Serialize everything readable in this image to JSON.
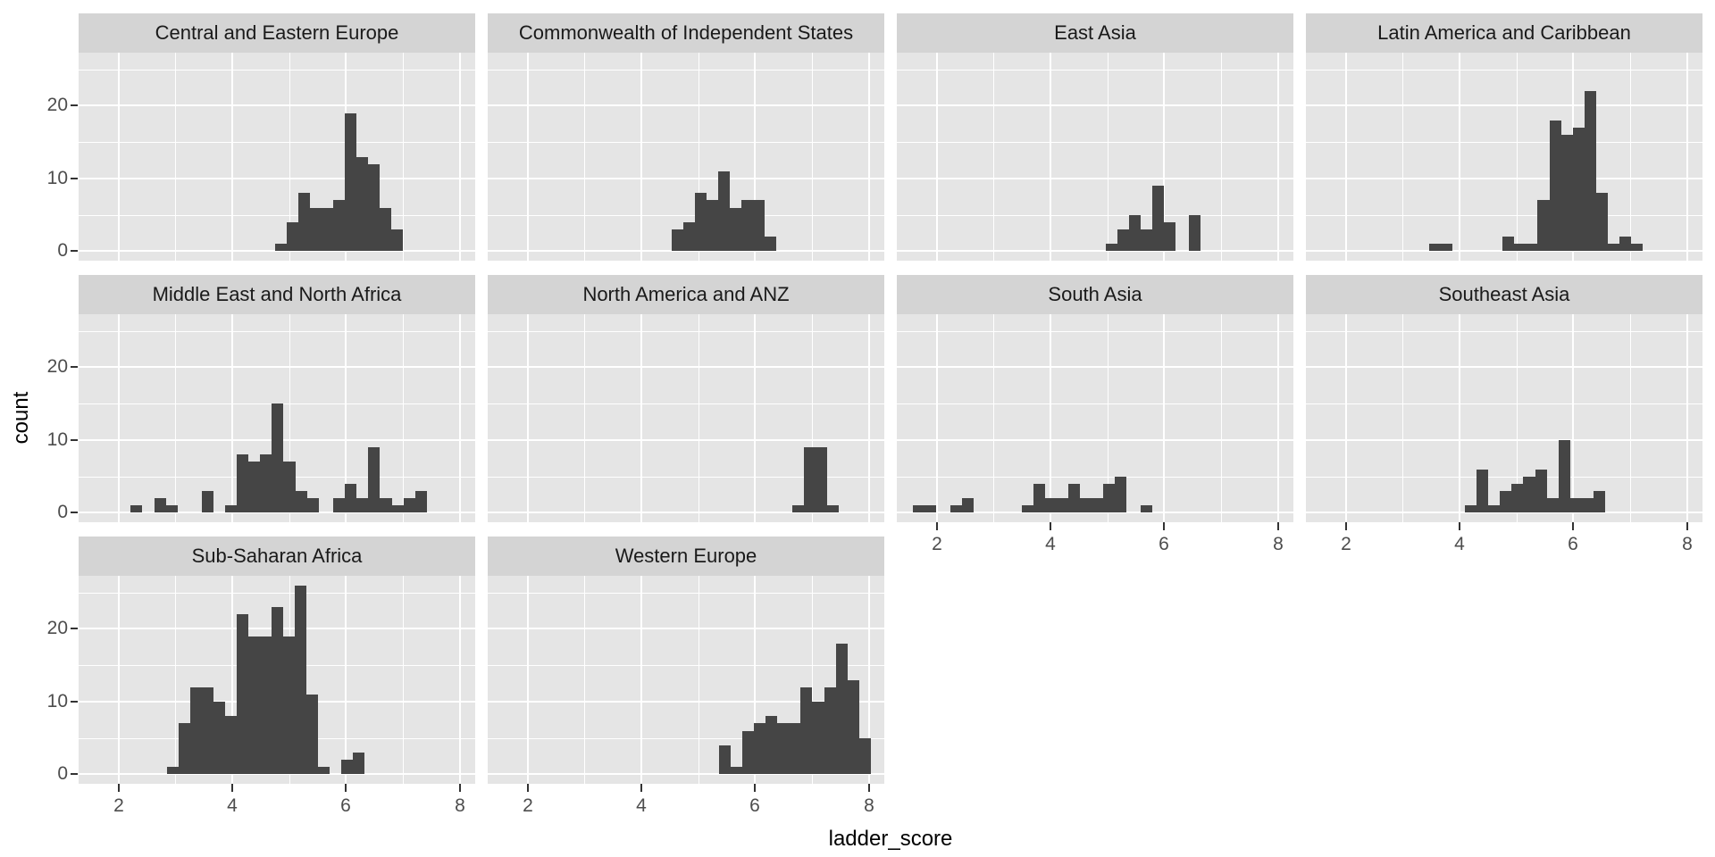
{
  "chart_data": {
    "type": "histogram",
    "xlabel": "ladder_score",
    "ylabel": "count",
    "x_ticks": [
      2,
      4,
      6,
      8
    ],
    "x_minor_gridlines": [
      3,
      5,
      7
    ],
    "y_ticks": [
      0,
      10,
      20
    ],
    "y_minor_gridlines": [
      5,
      15,
      25
    ],
    "x_domain": [
      1.3,
      8.27
    ],
    "y_domain": [
      -1.3,
      27.3
    ],
    "binwidth": 0.2045,
    "legend": "none",
    "grid": "white major and minor gridlines on grey panel",
    "facet_layout": {
      "rows": 3,
      "cols": 4
    },
    "facets": [
      {
        "name": "Central and Eastern Europe",
        "row": 0,
        "col": 0,
        "segments": [
          {
            "x0": 4.75,
            "counts": [
              1,
              4,
              8,
              6,
              6,
              7,
              19,
              13,
              12,
              6,
              3
            ]
          }
        ]
      },
      {
        "name": "Commonwealth of Independent States",
        "row": 0,
        "col": 1,
        "segments": [
          {
            "x0": 4.53,
            "counts": [
              3,
              4,
              8,
              7,
              11,
              6,
              7,
              7,
              2
            ]
          }
        ]
      },
      {
        "name": "East Asia",
        "row": 0,
        "col": 2,
        "segments": [
          {
            "x0": 4.97,
            "counts": [
              1,
              3,
              5,
              3,
              9,
              4
            ]
          },
          {
            "x0": 6.43,
            "counts": [
              5
            ]
          }
        ]
      },
      {
        "name": "Latin America and Caribbean",
        "row": 0,
        "col": 3,
        "segments": [
          {
            "x0": 3.47,
            "counts": [
              1,
              1
            ]
          },
          {
            "x0": 4.76,
            "counts": [
              2,
              1,
              1,
              7,
              18,
              16,
              17,
              22,
              8,
              1,
              2,
              1
            ]
          }
        ]
      },
      {
        "name": "Middle East and North Africa",
        "row": 1,
        "col": 0,
        "segments": [
          {
            "x0": 2.21,
            "counts": [
              1
            ]
          },
          {
            "x0": 2.63,
            "counts": [
              2,
              1
            ]
          },
          {
            "x0": 3.46,
            "counts": [
              3
            ]
          },
          {
            "x0": 3.88,
            "counts": [
              1,
              8,
              7,
              8,
              15,
              7,
              3,
              2
            ]
          },
          {
            "x0": 5.78,
            "counts": [
              2,
              4,
              2,
              9,
              2,
              1,
              2,
              3
            ]
          }
        ]
      },
      {
        "name": "North America and ANZ",
        "row": 1,
        "col": 1,
        "segments": [
          {
            "x0": 6.65,
            "counts": [
              1,
              9,
              9,
              1
            ]
          }
        ]
      },
      {
        "name": "South Asia",
        "row": 1,
        "col": 2,
        "segments": [
          {
            "x0": 1.58,
            "counts": [
              1,
              1
            ]
          },
          {
            "x0": 2.24,
            "counts": [
              1,
              2
            ]
          },
          {
            "x0": 3.49,
            "counts": [
              1,
              4,
              2,
              2,
              4,
              2,
              2,
              4,
              5
            ]
          },
          {
            "x0": 5.59,
            "counts": [
              1
            ]
          }
        ]
      },
      {
        "name": "Southeast Asia",
        "row": 1,
        "col": 3,
        "segments": [
          {
            "x0": 4.1,
            "counts": [
              1,
              6,
              1,
              3,
              4,
              5,
              6,
              2,
              10,
              2,
              2,
              3
            ]
          }
        ]
      },
      {
        "name": "Sub-Saharan Africa",
        "row": 2,
        "col": 0,
        "segments": [
          {
            "x0": 2.85,
            "counts": [
              1,
              7,
              12,
              12,
              10,
              8,
              22,
              19,
              19,
              23,
              19,
              26,
              11,
              1
            ]
          },
          {
            "x0": 5.92,
            "counts": [
              2,
              3
            ]
          }
        ]
      },
      {
        "name": "Western Europe",
        "row": 2,
        "col": 1,
        "segments": [
          {
            "x0": 5.37,
            "counts": [
              4,
              1,
              6,
              7,
              8,
              7,
              7,
              12,
              10,
              12,
              18,
              13,
              5
            ]
          }
        ]
      }
    ],
    "colors": {
      "bar": "#454545",
      "panel_bg": "#E5E5E5",
      "strip_bg": "#D4D4D4",
      "gridline": "#FFFFFF",
      "axis_text": "#4D4D4D",
      "strip_text": "#1A1A1A",
      "title_text": "#000000",
      "tick_mark": "#333333",
      "page_bg": "#FFFFFF"
    }
  }
}
